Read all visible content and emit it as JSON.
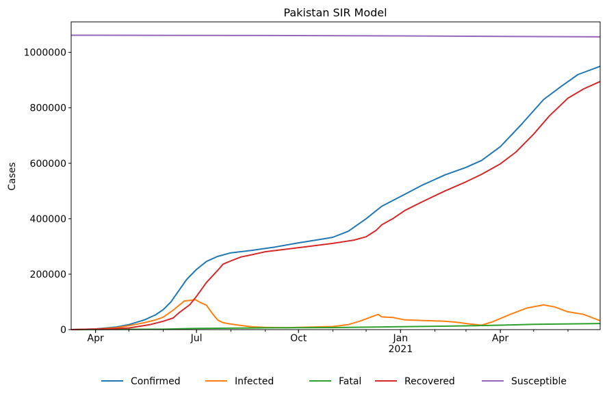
{
  "chart_data": {
    "type": "line",
    "title": "Pakistan SIR Model",
    "xlabel": "",
    "ylabel": "Cases",
    "x_range": [
      "2020-03-10",
      "2021-06-30"
    ],
    "ylim": [
      0,
      1110000
    ],
    "grid": false,
    "legend_position": "bottom-center",
    "x_ticks": [
      {
        "date": "2020-04-01",
        "label": "Apr",
        "sublabel": ""
      },
      {
        "date": "2020-07-01",
        "label": "Jul",
        "sublabel": ""
      },
      {
        "date": "2020-10-01",
        "label": "Oct",
        "sublabel": ""
      },
      {
        "date": "2021-01-01",
        "label": "Jan",
        "sublabel": "2021"
      },
      {
        "date": "2021-04-01",
        "label": "Apr",
        "sublabel": ""
      }
    ],
    "y_ticks": [
      0,
      200000,
      400000,
      600000,
      800000,
      1000000
    ],
    "y_tick_labels": [
      "0",
      "200000",
      "400000",
      "600000",
      "800000",
      "1000000"
    ],
    "series": [
      {
        "name": "Confirmed",
        "color": "#1f77b4",
        "points": [
          [
            "2020-03-10",
            0
          ],
          [
            "2020-04-01",
            2500
          ],
          [
            "2020-04-20",
            9500
          ],
          [
            "2020-05-01",
            18000
          ],
          [
            "2020-05-15",
            35000
          ],
          [
            "2020-05-25",
            53000
          ],
          [
            "2020-06-01",
            72000
          ],
          [
            "2020-06-08",
            100000
          ],
          [
            "2020-06-15",
            140000
          ],
          [
            "2020-06-22",
            180000
          ],
          [
            "2020-07-01",
            217000
          ],
          [
            "2020-07-10",
            246000
          ],
          [
            "2020-07-20",
            264000
          ],
          [
            "2020-08-01",
            277000
          ],
          [
            "2020-08-20",
            286000
          ],
          [
            "2020-09-10",
            298000
          ],
          [
            "2020-10-01",
            313000
          ],
          [
            "2020-10-20",
            325000
          ],
          [
            "2020-11-01",
            333000
          ],
          [
            "2020-11-15",
            355000
          ],
          [
            "2020-12-01",
            400000
          ],
          [
            "2020-12-15",
            445000
          ],
          [
            "2021-01-01",
            480000
          ],
          [
            "2021-01-20",
            520000
          ],
          [
            "2021-02-10",
            558000
          ],
          [
            "2021-03-01",
            585000
          ],
          [
            "2021-03-15",
            610000
          ],
          [
            "2021-04-01",
            660000
          ],
          [
            "2021-04-20",
            740000
          ],
          [
            "2021-05-10",
            830000
          ],
          [
            "2021-05-25",
            875000
          ],
          [
            "2021-06-10",
            920000
          ],
          [
            "2021-06-30",
            950000
          ]
        ]
      },
      {
        "name": "Infected",
        "color": "#ff7f0e",
        "points": [
          [
            "2020-03-10",
            0
          ],
          [
            "2020-04-01",
            2000
          ],
          [
            "2020-04-20",
            7000
          ],
          [
            "2020-05-01",
            14000
          ],
          [
            "2020-05-15",
            25000
          ],
          [
            "2020-05-25",
            35000
          ],
          [
            "2020-06-01",
            45000
          ],
          [
            "2020-06-10",
            70000
          ],
          [
            "2020-06-20",
            103000
          ],
          [
            "2020-06-30",
            108000
          ],
          [
            "2020-07-05",
            97000
          ],
          [
            "2020-07-10",
            88000
          ],
          [
            "2020-07-15",
            60000
          ],
          [
            "2020-07-20",
            35000
          ],
          [
            "2020-07-25",
            25000
          ],
          [
            "2020-08-01",
            20000
          ],
          [
            "2020-08-10",
            15000
          ],
          [
            "2020-08-20",
            10000
          ],
          [
            "2020-09-01",
            8000
          ],
          [
            "2020-09-20",
            7000
          ],
          [
            "2020-10-10",
            9000
          ],
          [
            "2020-11-01",
            11000
          ],
          [
            "2020-11-15",
            18000
          ],
          [
            "2020-11-25",
            30000
          ],
          [
            "2020-12-05",
            45000
          ],
          [
            "2020-12-12",
            55000
          ],
          [
            "2020-12-15",
            46000
          ],
          [
            "2020-12-25",
            44000
          ],
          [
            "2021-01-05",
            35000
          ],
          [
            "2021-01-20",
            33000
          ],
          [
            "2021-02-10",
            30000
          ],
          [
            "2021-02-20",
            27000
          ],
          [
            "2021-03-05",
            20000
          ],
          [
            "2021-03-15",
            16000
          ],
          [
            "2021-03-25",
            28000
          ],
          [
            "2021-04-10",
            55000
          ],
          [
            "2021-04-25",
            78000
          ],
          [
            "2021-05-10",
            89000
          ],
          [
            "2021-05-20",
            82000
          ],
          [
            "2021-05-31",
            65000
          ],
          [
            "2021-06-15",
            55000
          ],
          [
            "2021-06-30",
            32000
          ]
        ]
      },
      {
        "name": "Fatal",
        "color": "#2ca02c",
        "points": [
          [
            "2020-03-10",
            0
          ],
          [
            "2020-06-01",
            1500
          ],
          [
            "2020-07-01",
            4500
          ],
          [
            "2020-09-01",
            6300
          ],
          [
            "2020-11-01",
            7500
          ],
          [
            "2021-01-01",
            10500
          ],
          [
            "2021-03-01",
            13500
          ],
          [
            "2021-04-01",
            16000
          ],
          [
            "2021-05-01",
            19000
          ],
          [
            "2021-06-30",
            22000
          ]
        ]
      },
      {
        "name": "Recovered",
        "color": "#d62728",
        "points": [
          [
            "2020-03-10",
            0
          ],
          [
            "2020-04-15",
            3000
          ],
          [
            "2020-05-01",
            6000
          ],
          [
            "2020-05-20",
            18000
          ],
          [
            "2020-06-01",
            30000
          ],
          [
            "2020-06-10",
            42000
          ],
          [
            "2020-06-15",
            60000
          ],
          [
            "2020-06-25",
            90000
          ],
          [
            "2020-07-01",
            120000
          ],
          [
            "2020-07-10",
            170000
          ],
          [
            "2020-07-20",
            213000
          ],
          [
            "2020-07-25",
            236000
          ],
          [
            "2020-08-01",
            248000
          ],
          [
            "2020-08-10",
            262000
          ],
          [
            "2020-08-20",
            270000
          ],
          [
            "2020-09-01",
            281000
          ],
          [
            "2020-09-20",
            290000
          ],
          [
            "2020-10-10",
            300000
          ],
          [
            "2020-11-01",
            311000
          ],
          [
            "2020-11-20",
            323000
          ],
          [
            "2020-12-01",
            335000
          ],
          [
            "2020-12-10",
            358000
          ],
          [
            "2020-12-15",
            378000
          ],
          [
            "2020-12-25",
            400000
          ],
          [
            "2021-01-05",
            430000
          ],
          [
            "2021-01-20",
            460000
          ],
          [
            "2021-02-10",
            500000
          ],
          [
            "2021-03-01",
            533000
          ],
          [
            "2021-03-15",
            560000
          ],
          [
            "2021-04-01",
            598000
          ],
          [
            "2021-04-15",
            640000
          ],
          [
            "2021-05-01",
            705000
          ],
          [
            "2021-05-15",
            770000
          ],
          [
            "2021-06-01",
            835000
          ],
          [
            "2021-06-15",
            868000
          ],
          [
            "2021-06-30",
            895000
          ]
        ]
      },
      {
        "name": "Susceptible",
        "color": "#9467bd",
        "points": [
          [
            "2020-03-10",
            1062000
          ],
          [
            "2020-09-01",
            1061000
          ],
          [
            "2021-01-01",
            1059500
          ],
          [
            "2021-06-30",
            1056000
          ]
        ]
      }
    ]
  }
}
